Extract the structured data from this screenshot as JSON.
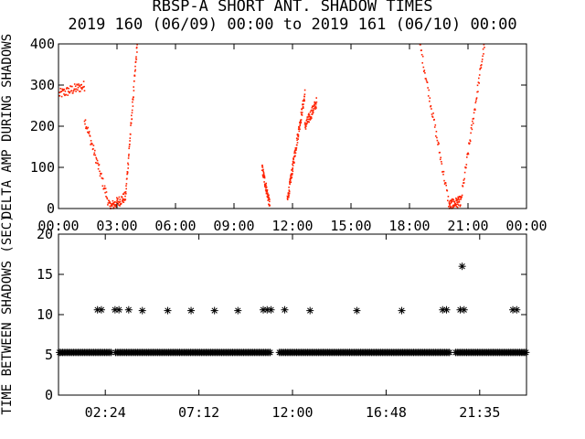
{
  "title": "RBSP-A SHORT ANT. SHADOW TIMES",
  "subtitle": "2019 160 (06/09) 00:00 to 2019 161 (06/10) 00:00",
  "chart_data": [
    {
      "type": "scatter",
      "ylabel": "DELTA AMP DURING SHADOWS",
      "xlim": [
        "00:00",
        "24:00"
      ],
      "ylim": [
        0,
        400
      ],
      "x_tick_labels": [
        "00:00",
        "03:00",
        "06:00",
        "09:00",
        "12:00",
        "15:00",
        "18:00",
        "21:00",
        "00:00"
      ],
      "y_ticks": [
        0,
        100,
        200,
        300,
        400
      ],
      "marker_color": "#ff2200",
      "point_groups": [
        {
          "x_hours": [
            0.0,
            1.3
          ],
          "y": [
            280,
            300
          ]
        },
        {
          "x_hours": [
            1.3,
            2.6
          ],
          "y": [
            220,
            5
          ]
        },
        {
          "x_hours": [
            2.6,
            3.4
          ],
          "y": [
            5,
            30
          ]
        },
        {
          "x_hours": [
            3.4,
            4.0
          ],
          "y": [
            30,
            400
          ]
        },
        {
          "x_hours": [
            10.4,
            10.8
          ],
          "y": [
            100,
            10
          ]
        },
        {
          "x_hours": [
            11.7,
            12.1
          ],
          "y": [
            20,
            140
          ]
        },
        {
          "x_hours": [
            12.1,
            12.6
          ],
          "y": [
            140,
            280
          ]
        },
        {
          "x_hours": [
            12.6,
            13.2
          ],
          "y": [
            200,
            260
          ]
        },
        {
          "x_hours": [
            18.5,
            20.0
          ],
          "y": [
            400,
            10
          ]
        },
        {
          "x_hours": [
            20.0,
            20.6
          ],
          "y": [
            10,
            20
          ]
        },
        {
          "x_hours": [
            20.6,
            21.8
          ],
          "y": [
            20,
            400
          ]
        }
      ]
    },
    {
      "type": "scatter",
      "ylabel": "TIME BETWEEN SHADOWS (SEC)",
      "xlim": [
        "00:00",
        "24:00"
      ],
      "ylim": [
        0,
        20
      ],
      "x_tick_labels": [
        "02:24",
        "07:12",
        "12:00",
        "16:48",
        "21:35"
      ],
      "y_ticks": [
        0,
        5,
        10,
        15,
        20
      ],
      "marker": "*",
      "marker_color": "#000000",
      "baseline_value": 5.3,
      "baseline_gaps_hours": [
        [
          2.7,
          2.9
        ],
        [
          10.9,
          11.3
        ],
        [
          20.1,
          20.3
        ]
      ],
      "outliers": [
        {
          "x_hours": 2.0,
          "y": 10.6
        },
        {
          "x_hours": 2.2,
          "y": 10.6
        },
        {
          "x_hours": 2.9,
          "y": 10.6
        },
        {
          "x_hours": 3.1,
          "y": 10.6
        },
        {
          "x_hours": 3.6,
          "y": 10.6
        },
        {
          "x_hours": 4.3,
          "y": 10.5
        },
        {
          "x_hours": 5.6,
          "y": 10.5
        },
        {
          "x_hours": 6.8,
          "y": 10.5
        },
        {
          "x_hours": 8.0,
          "y": 10.5
        },
        {
          "x_hours": 9.2,
          "y": 10.5
        },
        {
          "x_hours": 10.5,
          "y": 10.6
        },
        {
          "x_hours": 10.7,
          "y": 10.6
        },
        {
          "x_hours": 10.9,
          "y": 10.6
        },
        {
          "x_hours": 11.6,
          "y": 10.6
        },
        {
          "x_hours": 12.9,
          "y": 10.5
        },
        {
          "x_hours": 15.3,
          "y": 10.5
        },
        {
          "x_hours": 17.6,
          "y": 10.5
        },
        {
          "x_hours": 19.7,
          "y": 10.6
        },
        {
          "x_hours": 19.9,
          "y": 10.6
        },
        {
          "x_hours": 20.6,
          "y": 10.6
        },
        {
          "x_hours": 20.8,
          "y": 10.6
        },
        {
          "x_hours": 20.7,
          "y": 16.0
        },
        {
          "x_hours": 23.3,
          "y": 10.6
        },
        {
          "x_hours": 23.5,
          "y": 10.6
        }
      ]
    }
  ]
}
